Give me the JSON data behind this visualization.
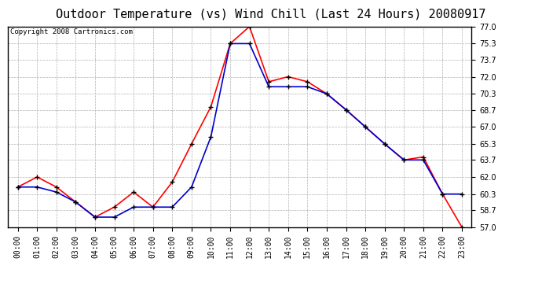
{
  "title": "Outdoor Temperature (vs) Wind Chill (Last 24 Hours) 20080917",
  "copyright": "Copyright 2008 Cartronics.com",
  "hours": [
    "00:00",
    "01:00",
    "02:00",
    "03:00",
    "04:00",
    "05:00",
    "06:00",
    "07:00",
    "08:00",
    "09:00",
    "10:00",
    "11:00",
    "12:00",
    "13:00",
    "14:00",
    "15:00",
    "16:00",
    "17:00",
    "18:00",
    "19:00",
    "20:00",
    "21:00",
    "22:00",
    "23:00"
  ],
  "outdoor_temp": [
    61.0,
    62.0,
    61.0,
    59.5,
    58.0,
    59.0,
    60.5,
    59.0,
    61.5,
    65.3,
    69.0,
    75.3,
    77.0,
    71.5,
    72.0,
    71.5,
    70.3,
    68.7,
    67.0,
    65.3,
    63.7,
    64.0,
    60.3,
    57.0
  ],
  "wind_chill": [
    61.0,
    61.0,
    60.5,
    59.5,
    58.0,
    58.0,
    59.0,
    59.0,
    59.0,
    61.0,
    66.0,
    75.3,
    75.3,
    71.0,
    71.0,
    71.0,
    70.3,
    68.7,
    67.0,
    65.3,
    63.7,
    63.7,
    60.3,
    60.3
  ],
  "temp_color": "#ff0000",
  "wind_chill_color": "#0000cc",
  "bg_color": "#ffffff",
  "plot_bg_color": "#ffffff",
  "grid_color": "#b0b0b0",
  "ylim_min": 57.0,
  "ylim_max": 77.0,
  "yticks": [
    57.0,
    58.7,
    60.3,
    62.0,
    63.7,
    65.3,
    67.0,
    68.7,
    70.3,
    72.0,
    73.7,
    75.3,
    77.0
  ],
  "marker": "+",
  "marker_color": "#000000",
  "marker_size": 5,
  "line_width": 1.2,
  "title_fontsize": 11,
  "tick_fontsize": 7,
  "copyright_fontsize": 6.5
}
